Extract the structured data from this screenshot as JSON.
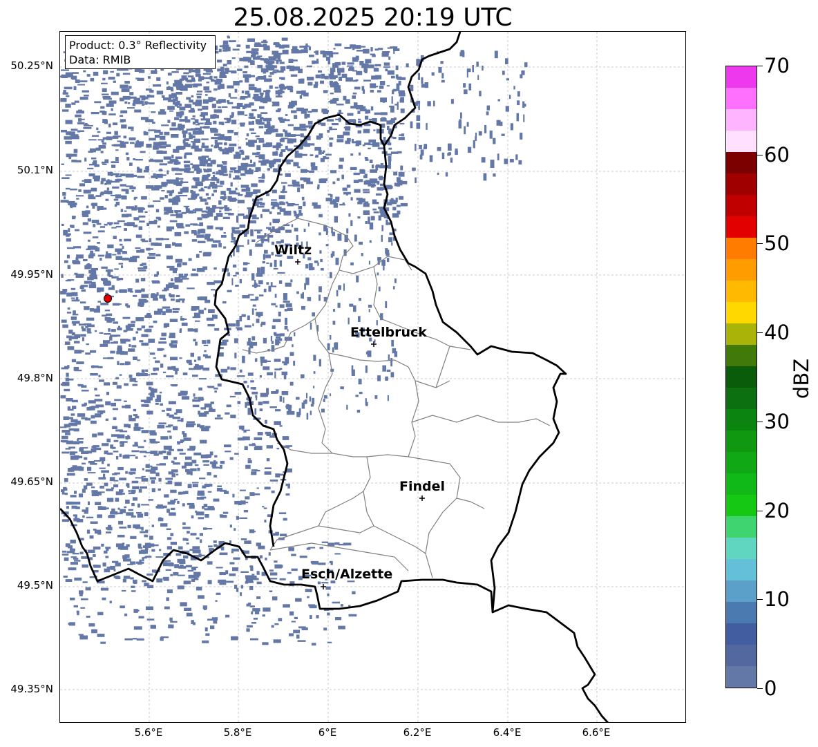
{
  "title": "25.08.2025 20:19 UTC",
  "info_box": {
    "line1": "Product: 0.3° Reflectivity",
    "line2": "Data: RMIB"
  },
  "lat_labels": [
    "50.25°N",
    "50.1°N",
    "49.95°N",
    "49.8°N",
    "49.65°N",
    "49.5°N",
    "49.35°N"
  ],
  "lon_labels": [
    "5.6°E",
    "5.8°E",
    "6°E",
    "6.2°E",
    "6.4°E",
    "6.6°E"
  ],
  "cities": [
    {
      "name": "Wiltz"
    },
    {
      "name": "Ettelbruck"
    },
    {
      "name": "Findel"
    },
    {
      "name": "Esch/Alzette"
    }
  ],
  "colorbar": {
    "label": "dBZ",
    "tick_labels": [
      "0",
      "10",
      "20",
      "30",
      "40",
      "50",
      "60",
      "70"
    ],
    "colors": [
      "#6478a8",
      "#52689e",
      "#435ea0",
      "#4a7ab0",
      "#5aa0c8",
      "#64c0d8",
      "#60d6c0",
      "#40d470",
      "#14c814",
      "#10b818",
      "#10a814",
      "#109810",
      "#0c8410",
      "#0c7010",
      "#0a5c0a",
      "#427a0a",
      "#aab408",
      "#ffd800",
      "#ffba00",
      "#ff9c00",
      "#ff7c00",
      "#e20000",
      "#c00000",
      "#a00000",
      "#7c0000",
      "#ffe0ff",
      "#ffb4ff",
      "#ff70ff",
      "#ee38ee"
    ]
  },
  "radar_site_color": "#e00000",
  "echo_color": "#6478a8",
  "country_border_color": "#000000",
  "canton_border_color": "#808080"
}
